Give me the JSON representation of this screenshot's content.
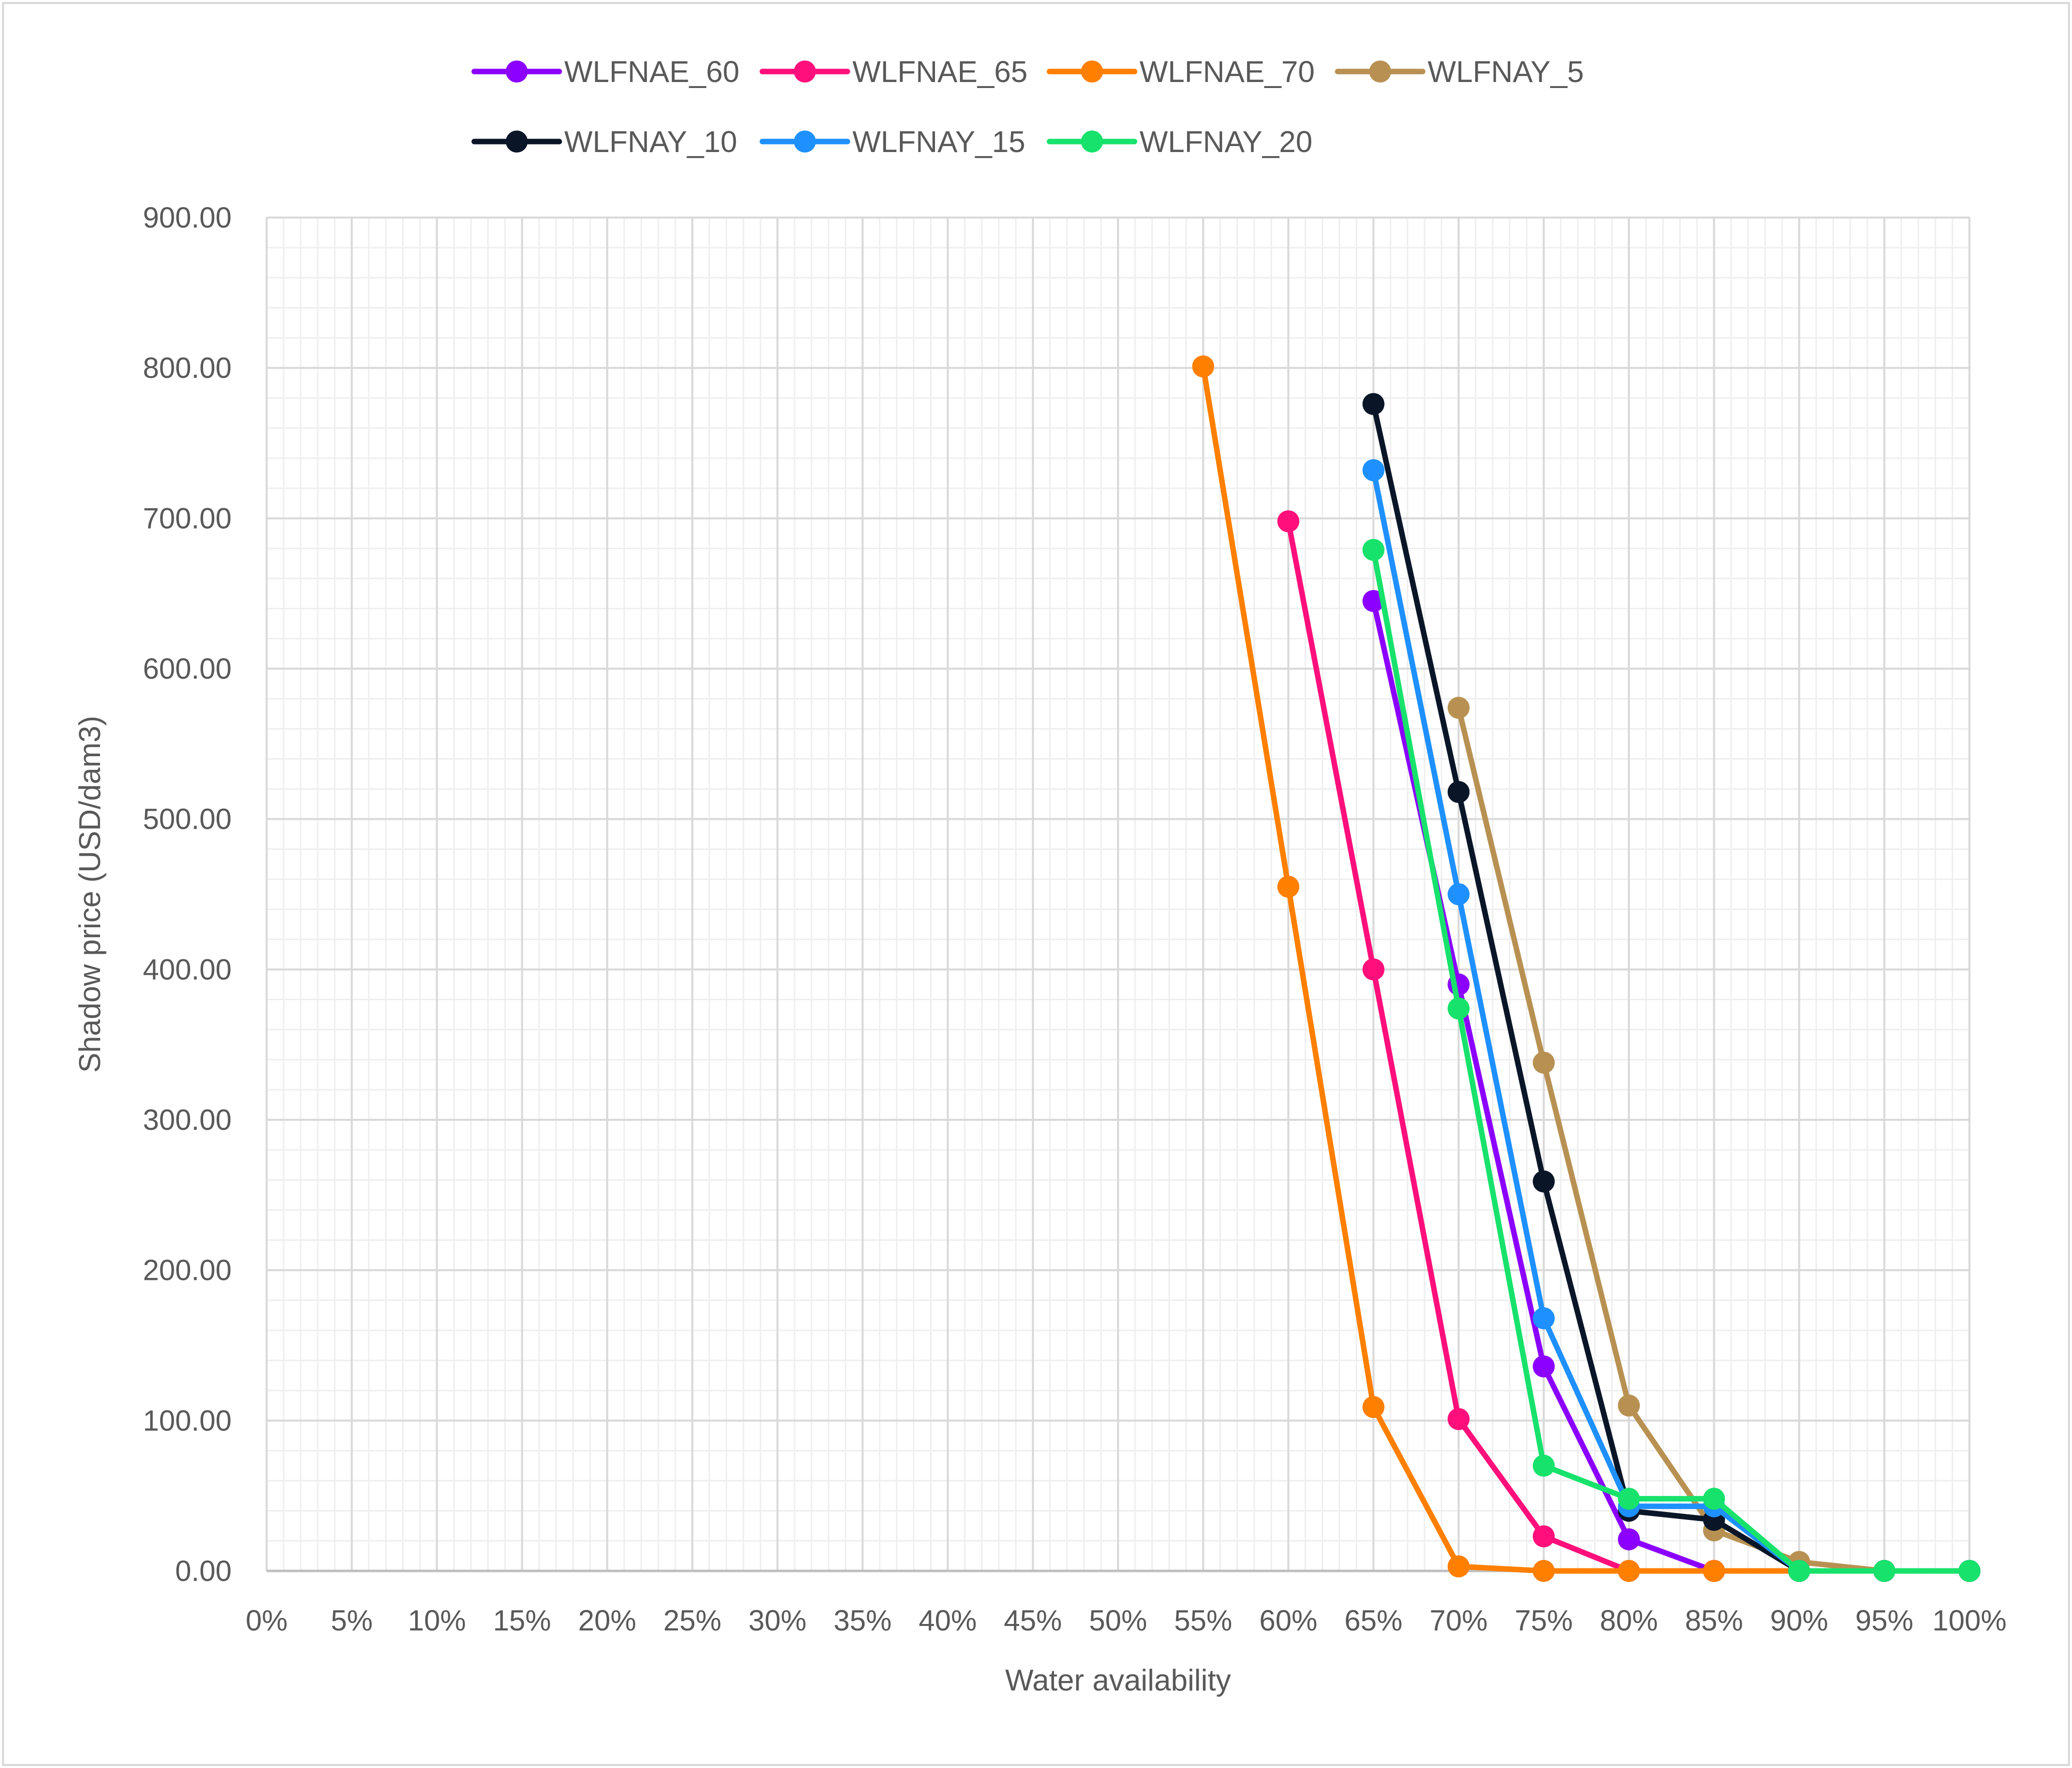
{
  "chart_data": {
    "type": "line",
    "title": "",
    "xlabel": "Water availability",
    "ylabel": "Shadow price (USD/dam3)",
    "x_ticks": [
      "0%",
      "5%",
      "10%",
      "15%",
      "20%",
      "25%",
      "30%",
      "35%",
      "40%",
      "45%",
      "50%",
      "55%",
      "60%",
      "65%",
      "70%",
      "75%",
      "80%",
      "85%",
      "90%",
      "95%",
      "100%"
    ],
    "y_ticks": [
      "0.00",
      "100.00",
      "200.00",
      "300.00",
      "400.00",
      "500.00",
      "600.00",
      "700.00",
      "800.00",
      "900.00"
    ],
    "xlim": [
      0,
      100
    ],
    "ylim": [
      0,
      900
    ],
    "grid": true,
    "legend_position": "top",
    "series": [
      {
        "name": "WLFNAE_60",
        "color": "#8B00FF",
        "points": [
          [
            65,
            645
          ],
          [
            70,
            390
          ],
          [
            75,
            136
          ],
          [
            80,
            21
          ],
          [
            85,
            0
          ],
          [
            90,
            0
          ],
          [
            95,
            0
          ],
          [
            100,
            0
          ]
        ]
      },
      {
        "name": "WLFNAE_65",
        "color": "#FF0F7B",
        "points": [
          [
            60,
            698
          ],
          [
            65,
            400
          ],
          [
            70,
            101
          ],
          [
            75,
            23
          ],
          [
            80,
            0
          ],
          [
            85,
            0
          ],
          [
            90,
            0
          ],
          [
            95,
            0
          ],
          [
            100,
            0
          ]
        ]
      },
      {
        "name": "WLFNAE_70",
        "color": "#FF7F00",
        "points": [
          [
            55,
            801
          ],
          [
            60,
            455
          ],
          [
            65,
            109
          ],
          [
            70,
            3
          ],
          [
            75,
            0
          ],
          [
            80,
            0
          ],
          [
            85,
            0
          ],
          [
            90,
            0
          ],
          [
            95,
            0
          ],
          [
            100,
            0
          ]
        ]
      },
      {
        "name": "WLFNAY_5",
        "color": "#B89152",
        "points": [
          [
            70,
            574
          ],
          [
            75,
            338
          ],
          [
            80,
            110
          ],
          [
            85,
            27
          ],
          [
            90,
            6
          ],
          [
            95,
            0
          ],
          [
            100,
            0
          ]
        ]
      },
      {
        "name": "WLFNAY_10",
        "color": "#0A1628",
        "points": [
          [
            65,
            776
          ],
          [
            70,
            518
          ],
          [
            75,
            259
          ],
          [
            80,
            40
          ],
          [
            85,
            34
          ],
          [
            90,
            0
          ],
          [
            95,
            0
          ],
          [
            100,
            0
          ]
        ]
      },
      {
        "name": "WLFNAY_15",
        "color": "#1E90FF",
        "points": [
          [
            65,
            732
          ],
          [
            70,
            450
          ],
          [
            75,
            168
          ],
          [
            80,
            43
          ],
          [
            85,
            43
          ],
          [
            90,
            0
          ],
          [
            95,
            0
          ],
          [
            100,
            0
          ]
        ]
      },
      {
        "name": "WLFNAY_20",
        "color": "#17E26B",
        "points": [
          [
            65,
            679
          ],
          [
            70,
            374
          ],
          [
            75,
            70
          ],
          [
            80,
            48
          ],
          [
            85,
            48
          ],
          [
            90,
            0
          ],
          [
            95,
            0
          ],
          [
            100,
            0
          ]
        ]
      }
    ]
  }
}
